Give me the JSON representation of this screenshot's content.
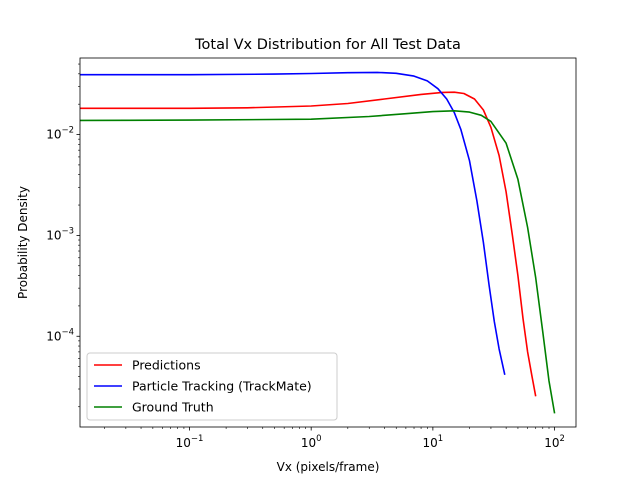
{
  "chart_data": {
    "type": "line",
    "title": "Total Vx Distribution for All Test Data",
    "xlabel": "Vx (pixels/frame)",
    "ylabel": "Probability Density",
    "xscale": "log",
    "yscale": "log",
    "xlim": [
      0.0126,
      150
    ],
    "ylim": [
      1.26e-05,
      0.0574
    ],
    "x_ticks": [
      {
        "value": 0.1,
        "base": "10",
        "exp": "−1"
      },
      {
        "value": 1,
        "base": "10",
        "exp": "0"
      },
      {
        "value": 10,
        "base": "10",
        "exp": "1"
      },
      {
        "value": 100,
        "base": "10",
        "exp": "2"
      }
    ],
    "y_ticks": [
      {
        "value": 0.0001,
        "base": "10",
        "exp": "−4"
      },
      {
        "value": 0.001,
        "base": "10",
        "exp": "−3"
      },
      {
        "value": 0.01,
        "base": "10",
        "exp": "−2"
      }
    ],
    "grid": false,
    "legend_position": "lower-left",
    "series": [
      {
        "name": "Predictions",
        "color": "#ff0000",
        "x": [
          0.0126,
          0.1,
          0.3,
          1,
          2,
          4,
          8,
          12,
          15,
          18,
          22,
          26,
          30,
          35,
          40,
          45,
          50,
          55,
          60,
          65,
          70
        ],
        "y": [
          0.0182,
          0.0182,
          0.0184,
          0.0192,
          0.0203,
          0.0225,
          0.025,
          0.0262,
          0.0263,
          0.0255,
          0.0225,
          0.0175,
          0.0118,
          0.0062,
          0.0027,
          0.001,
          0.0004,
          0.00015,
          7e-05,
          4.1e-05,
          2.54e-05
        ]
      },
      {
        "name": "Particle Tracking (TrackMate)",
        "color": "#0000ff",
        "x": [
          0.0126,
          0.1,
          0.5,
          1,
          2,
          3.5,
          5,
          7,
          9,
          11,
          13,
          15,
          17,
          20,
          23,
          26,
          29,
          32,
          35,
          39
        ],
        "y": [
          0.0392,
          0.0392,
          0.0397,
          0.0403,
          0.041,
          0.0413,
          0.0405,
          0.038,
          0.034,
          0.0285,
          0.0225,
          0.0165,
          0.0112,
          0.0055,
          0.0022,
          0.00085,
          0.00032,
          0.00014,
          7.5e-05,
          4.15e-05
        ]
      },
      {
        "name": "Ground Truth",
        "color": "#008000",
        "x": [
          0.0126,
          0.1,
          1,
          3,
          6,
          10,
          15,
          20,
          25,
          30,
          40,
          50,
          60,
          70,
          80,
          90,
          100
        ],
        "y": [
          0.0138,
          0.0139,
          0.0142,
          0.0151,
          0.0161,
          0.0169,
          0.0172,
          0.0167,
          0.0155,
          0.0135,
          0.0082,
          0.0036,
          0.0012,
          0.00038,
          0.00011,
          3.6e-05,
          1.72e-05
        ]
      }
    ]
  }
}
